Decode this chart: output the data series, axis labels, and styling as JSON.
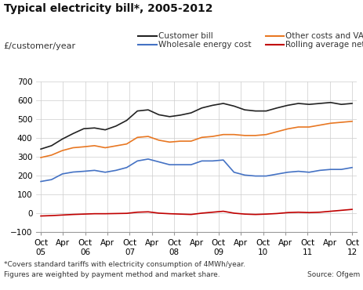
{
  "title": "Typical electricity bill*, 2005-2012",
  "ylabel": "£/customer/year",
  "footnote1": "*Covers standard tariffs with electricity consumption of 4MWh/year.",
  "footnote2": "Figures are weighted by payment method and market share.",
  "source": "Source: Ofgem",
  "ylim": [
    -100,
    700
  ],
  "yticks": [
    -100,
    0,
    100,
    200,
    300,
    400,
    500,
    600,
    700
  ],
  "background_color": "#ffffff",
  "series": {
    "customer_bill": {
      "label": "Customer bill",
      "color": "#222222",
      "values": [
        340,
        358,
        393,
        422,
        448,
        452,
        442,
        462,
        492,
        542,
        548,
        522,
        512,
        520,
        532,
        558,
        572,
        582,
        568,
        548,
        542,
        542,
        558,
        572,
        582,
        577,
        582,
        587,
        577,
        582
      ]
    },
    "other_costs": {
      "label": "Other costs and VAT",
      "color": "#e87722",
      "values": [
        295,
        308,
        332,
        347,
        352,
        358,
        347,
        357,
        367,
        402,
        407,
        387,
        377,
        382,
        382,
        402,
        407,
        417,
        417,
        412,
        412,
        417,
        432,
        447,
        457,
        457,
        467,
        477,
        482,
        487
      ]
    },
    "wholesale": {
      "label": "Wholesale energy cost",
      "color": "#4472c4",
      "values": [
        168,
        178,
        208,
        218,
        222,
        227,
        217,
        227,
        242,
        277,
        287,
        272,
        257,
        257,
        257,
        277,
        277,
        282,
        217,
        202,
        197,
        197,
        207,
        217,
        222,
        217,
        227,
        232,
        232,
        242
      ]
    },
    "rolling_avg": {
      "label": "Rolling average net margin",
      "color": "#c00000",
      "values": [
        -15,
        -13,
        -10,
        -7,
        -5,
        -3,
        -3,
        -2,
        -1,
        5,
        7,
        0,
        -3,
        -5,
        -7,
        0,
        5,
        10,
        0,
        -5,
        -7,
        -5,
        -2,
        3,
        5,
        3,
        5,
        10,
        15,
        20
      ]
    }
  },
  "x_tick_labels": [
    "Oct\n05",
    "Apr",
    "Oct\n06",
    "Apr",
    "Oct\n07",
    "Apr",
    "Oct\n08",
    "Apr",
    "Oct\n09",
    "Apr",
    "Oct\n10",
    "Apr",
    "Oct\n11",
    "Apr",
    "Oct\n12"
  ],
  "n_points": 30,
  "legend": [
    {
      "label": "Customer bill",
      "color": "#222222"
    },
    {
      "label": "Other costs and VAT",
      "color": "#e87722"
    },
    {
      "label": "Wholesale energy cost",
      "color": "#4472c4"
    },
    {
      "label": "Rolling average net margin",
      "color": "#c00000"
    }
  ]
}
